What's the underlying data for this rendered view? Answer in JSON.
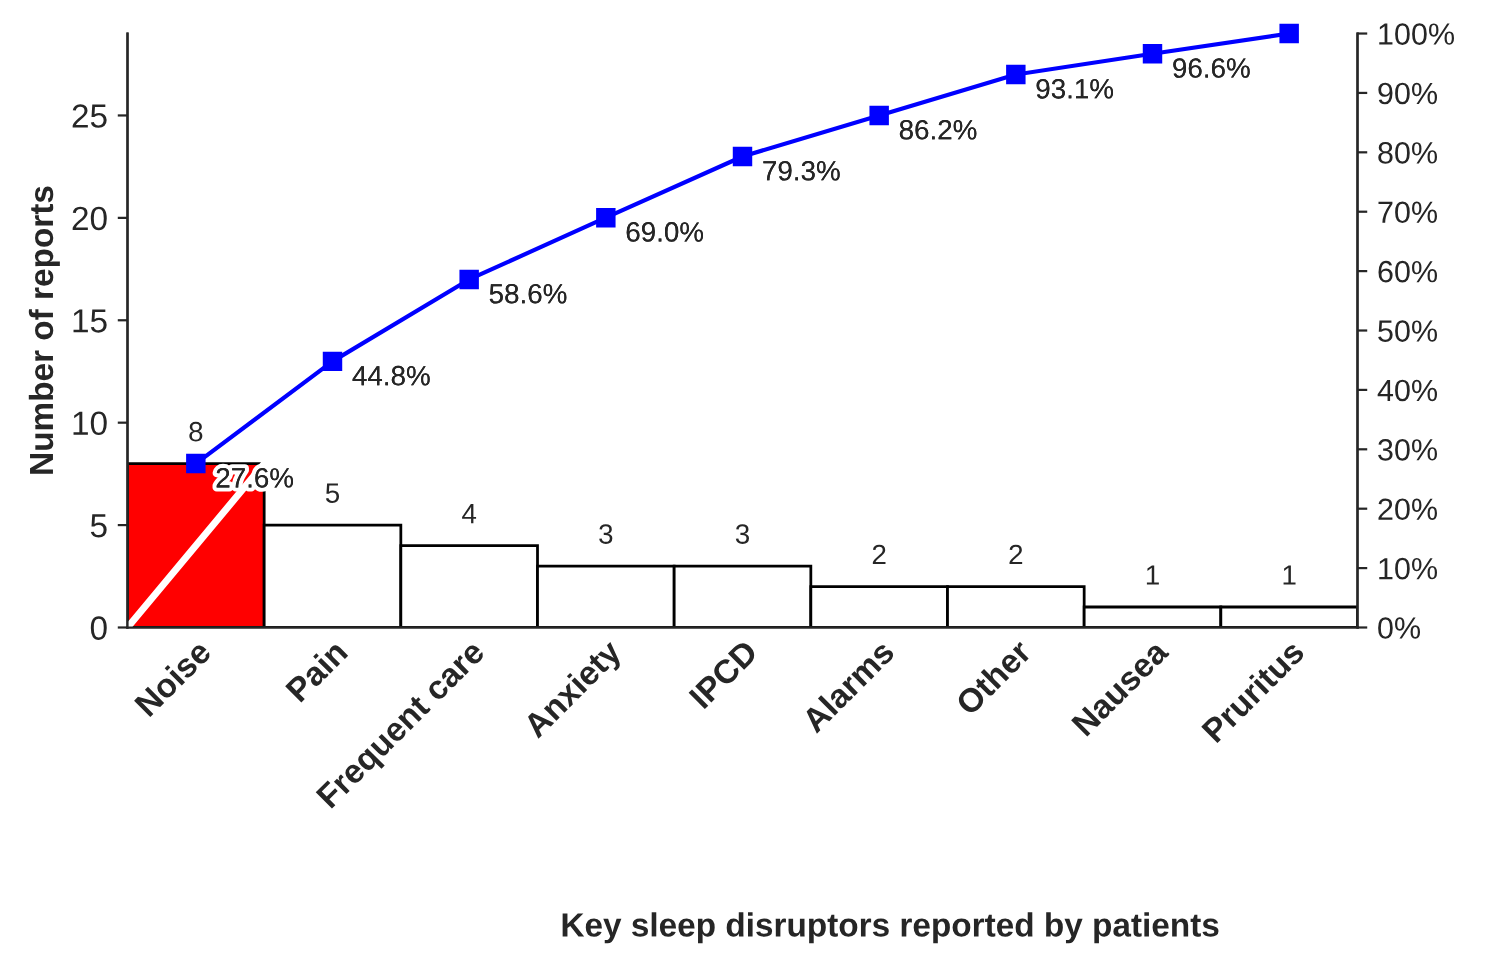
{
  "chart_data": {
    "type": "bar",
    "xlabel": "Key sleep disruptors reported by patients",
    "ylabel": "Number of reports",
    "categories": [
      "Noise",
      "Pain",
      "Frequent care",
      "Anxiety",
      "IPCD",
      "Alarms",
      "Other",
      "Nausea",
      "Pruritus"
    ],
    "series": [
      {
        "colors": [
          "#ff0000",
          "#ffffff",
          "#ffffff",
          "#ffffff",
          "#ffffff",
          "#ffffff",
          "#ffffff",
          "#ffffff",
          "#ffffff"
        ],
        "values": [
          8,
          5,
          4,
          3,
          3,
          2,
          2,
          1,
          1
        ],
        "value_labels": [
          "8",
          "5",
          "4",
          "3",
          "3",
          "2",
          "2",
          "1",
          "1"
        ]
      },
      {
        "type": "line",
        "axis": "y2",
        "color": "#0000ff",
        "values": [
          27.6,
          44.8,
          58.6,
          69.0,
          79.3,
          86.2,
          93.1,
          96.6,
          100
        ],
        "value_labels": [
          "27.6%",
          "44.8%",
          "58.6%",
          "69.0%",
          "79.3%",
          "86.2%",
          "93.1%",
          "96.6%",
          null
        ]
      }
    ],
    "ylim": [
      0,
      29
    ],
    "yticks": [
      0,
      5,
      10,
      15,
      20,
      25
    ],
    "y2lim": [
      0,
      100
    ],
    "y2ticks": [
      {
        "value": 0,
        "label": "0%"
      },
      {
        "value": 10,
        "label": "10%"
      },
      {
        "value": 20,
        "label": "20%"
      },
      {
        "value": 30,
        "label": "30%"
      },
      {
        "value": 40,
        "label": "40%"
      },
      {
        "value": 50,
        "label": "50%"
      },
      {
        "value": 60,
        "label": "60%"
      },
      {
        "value": 70,
        "label": "70%"
      },
      {
        "value": 80,
        "label": "80%"
      },
      {
        "value": 90,
        "label": "90%"
      },
      {
        "value": 100,
        "label": "100%"
      }
    ],
    "marker": "square",
    "grid": false,
    "legend": false
  }
}
